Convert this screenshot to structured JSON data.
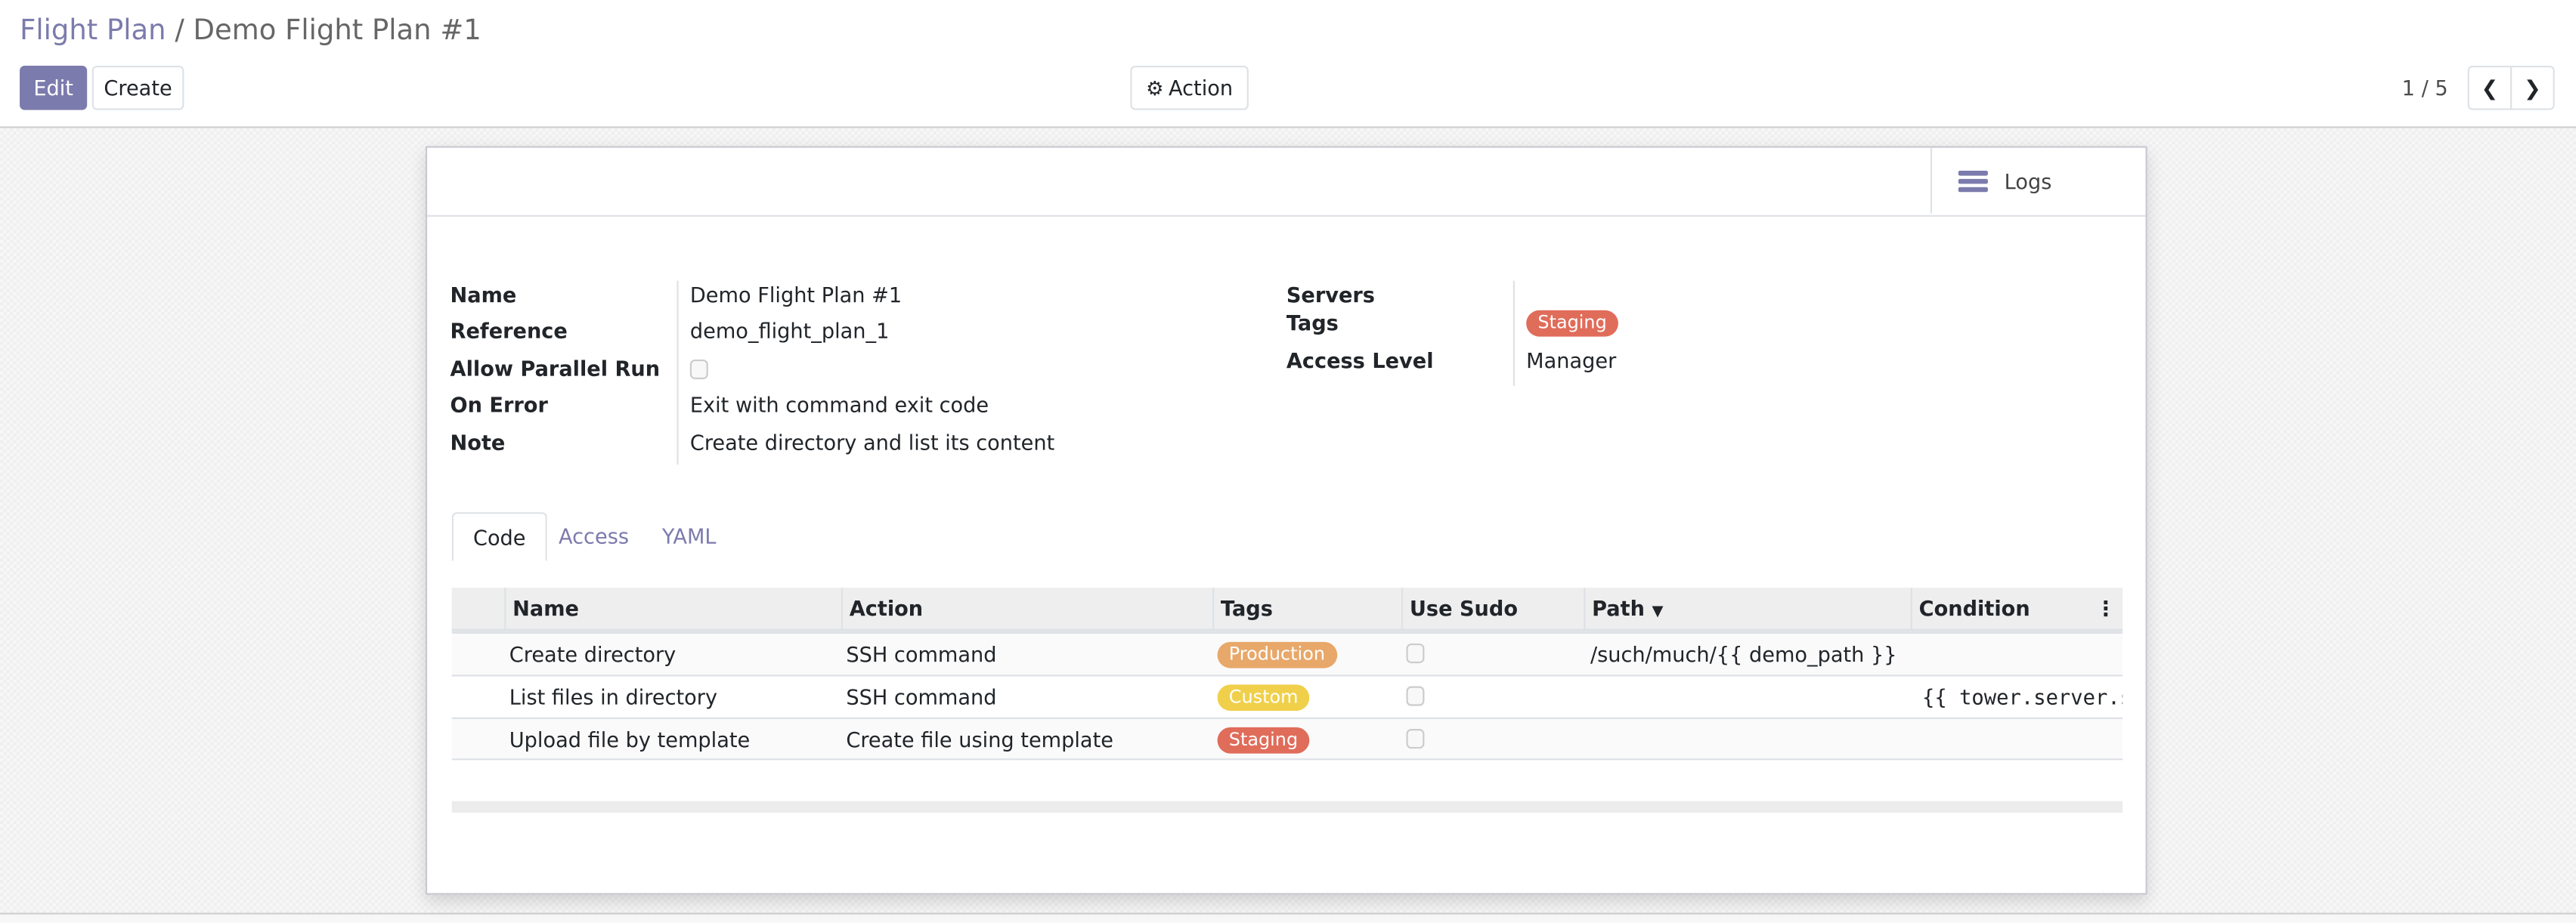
{
  "breadcrumb": {
    "parent": "Flight Plan",
    "separator": "/",
    "current": "Demo Flight Plan #1"
  },
  "toolbar": {
    "edit_label": "Edit",
    "create_label": "Create",
    "action_label": "Action",
    "action_icon": "gear-icon"
  },
  "pager": {
    "value": "1 / 5",
    "prev_icon": "chevron-left-icon",
    "next_icon": "chevron-right-icon"
  },
  "chatter": {
    "logs_label": "Logs",
    "logs_icon": "bars-icon"
  },
  "form": {
    "left": [
      {
        "label": "Name",
        "value": "Demo Flight Plan #1"
      },
      {
        "label": "Reference",
        "value": "demo_flight_plan_1"
      },
      {
        "label": "Allow Parallel Run",
        "checked": false
      },
      {
        "label": "On Error",
        "value": "Exit with command exit code"
      },
      {
        "label": "Note",
        "value": "Create directory and list its content"
      }
    ],
    "right": {
      "servers_label": "Servers",
      "tags_label": "Tags",
      "tags": [
        {
          "name": "Staging",
          "color": "#e06c5a"
        }
      ],
      "access_label": "Access Level",
      "access_value": "Manager"
    }
  },
  "tabs": [
    {
      "label": "Code",
      "active": true
    },
    {
      "label": "Access"
    },
    {
      "label": "YAML"
    }
  ],
  "table": {
    "columns": [
      "Name",
      "Action",
      "Tags",
      "Use Sudo",
      "Path",
      "Condition"
    ],
    "sort_icon": "caret-down-icon",
    "rows": [
      {
        "name": "Create directory",
        "action": "SSH command",
        "tag": "Production",
        "tag_color": "#e8a86a",
        "use_sudo": false,
        "path": "/such/much/{{ demo_path }}",
        "condition": ""
      },
      {
        "name": "List files in directory",
        "action": "SSH command",
        "tag": "Custom",
        "tag_color": "#f0d04a",
        "use_sudo": false,
        "path": "",
        "condition": "{{ tower.server.st"
      },
      {
        "name": "Upload file by template",
        "action": "Create file using template",
        "tag": "Staging",
        "tag_color": "#e06c5a",
        "use_sudo": false,
        "path": "",
        "condition": ""
      }
    ]
  }
}
